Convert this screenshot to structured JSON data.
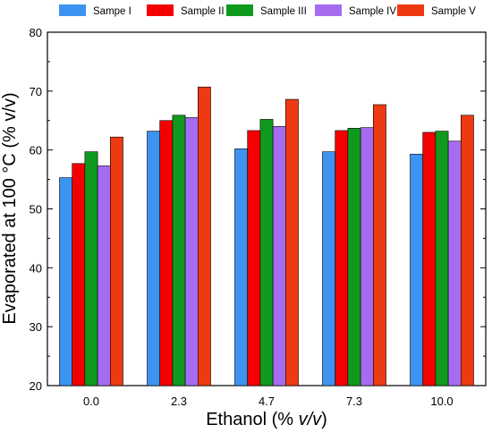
{
  "chart_data": {
    "type": "bar",
    "xlabel_main": "Ethanol (% ",
    "xlabel_italic": "v/v",
    "xlabel_end": ")",
    "ylabel": "Evaporated at 100 °C (% v/v)",
    "categories": [
      "0.0",
      "2.3",
      "4.7",
      "7.3",
      "10.0"
    ],
    "ylim": [
      20,
      80
    ],
    "yticks": [
      "20",
      "30",
      "40",
      "50",
      "60",
      "70",
      "80"
    ],
    "legend_position": "top",
    "grid": false,
    "series": [
      {
        "name": "Sampe I",
        "color": "#3d94f0",
        "values": [
          55.3,
          63.2,
          60.2,
          59.7,
          59.3
        ]
      },
      {
        "name": "Sample II",
        "color": "#f50000",
        "values": [
          57.7,
          65.0,
          63.3,
          63.3,
          63.0
        ]
      },
      {
        "name": "Sample III",
        "color": "#0f9a1e",
        "values": [
          59.7,
          65.9,
          65.2,
          63.7,
          63.2
        ]
      },
      {
        "name": "Sample IV",
        "color": "#a66cf0",
        "values": [
          57.3,
          65.5,
          64.0,
          63.8,
          61.5
        ]
      },
      {
        "name": "Sample V",
        "color": "#ee3a12",
        "values": [
          62.2,
          70.7,
          68.6,
          67.7,
          65.9
        ]
      }
    ]
  }
}
